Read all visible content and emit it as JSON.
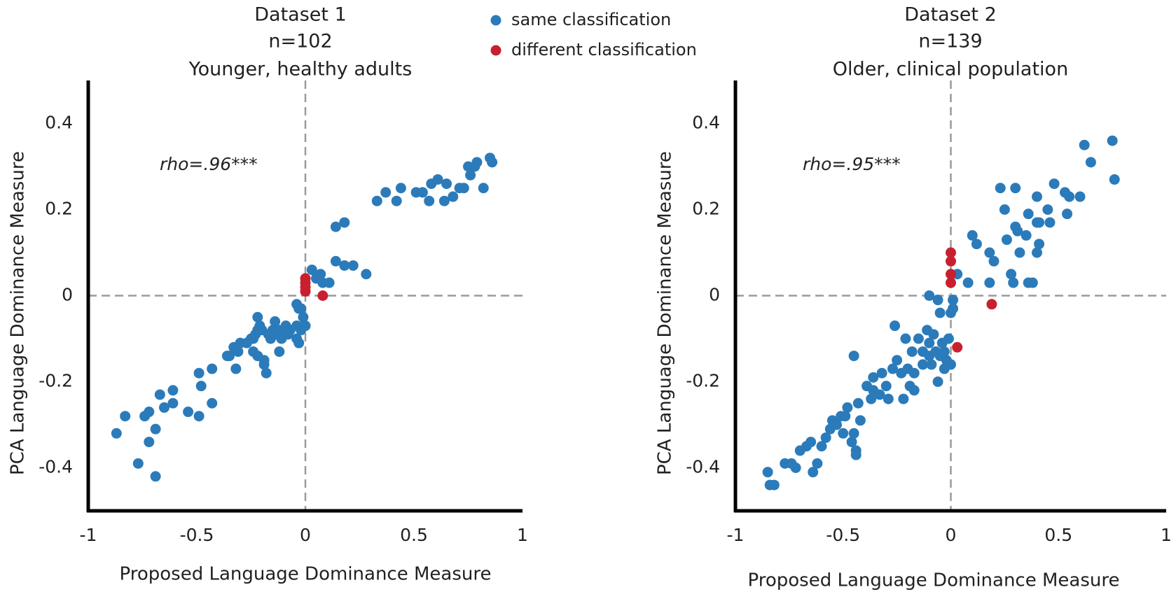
{
  "chart_data": [
    {
      "type": "scatter",
      "title": "Dataset 1",
      "subtitle": [
        "n=102",
        "Younger, healthy adults"
      ],
      "annotation": "rho=.96***",
      "xlabel": "Proposed Language Dominance Measure",
      "ylabel": "PCA Language Dominance Measure",
      "xlim": [
        -1,
        1
      ],
      "ylim": [
        -0.5,
        0.5
      ],
      "xticks": [
        -1,
        -0.5,
        0,
        0.5,
        1
      ],
      "yticks": [
        -0.4,
        -0.2,
        0,
        0.2,
        0.4
      ],
      "zero_lines": true,
      "legend": "top-center",
      "series": [
        {
          "name": "same classification",
          "color": "#2b7bba",
          "x": [
            -0.87,
            -0.83,
            -0.77,
            -0.74,
            -0.72,
            -0.72,
            -0.69,
            -0.69,
            -0.67,
            -0.65,
            -0.61,
            -0.61,
            -0.54,
            -0.49,
            -0.49,
            -0.48,
            -0.43,
            -0.43,
            -0.36,
            -0.35,
            -0.33,
            -0.32,
            -0.31,
            -0.3,
            -0.27,
            -0.25,
            -0.24,
            -0.24,
            -0.23,
            -0.22,
            -0.22,
            -0.22,
            -0.21,
            -0.2,
            -0.19,
            -0.19,
            -0.18,
            -0.17,
            -0.16,
            -0.15,
            -0.14,
            -0.14,
            -0.12,
            -0.12,
            -0.11,
            -0.09,
            -0.08,
            -0.07,
            -0.04,
            -0.04,
            -0.04,
            -0.03,
            -0.03,
            -0.02,
            -0.01,
            -0.02,
            -0.01,
            0.0,
            0.03,
            0.05,
            0.07,
            0.08,
            0.11,
            0.14,
            0.18,
            0.14,
            0.18,
            0.22,
            0.28,
            0.33,
            0.37,
            0.42,
            0.44,
            0.51,
            0.54,
            0.58,
            0.57,
            0.61,
            0.64,
            0.65,
            0.68,
            0.71,
            0.73,
            0.75,
            0.76,
            0.78,
            0.79,
            0.82,
            0.85,
            0.86
          ],
          "y": [
            -0.32,
            -0.28,
            -0.39,
            -0.28,
            -0.27,
            -0.34,
            -0.31,
            -0.42,
            -0.23,
            -0.26,
            -0.22,
            -0.25,
            -0.27,
            -0.18,
            -0.28,
            -0.21,
            -0.25,
            -0.17,
            -0.14,
            -0.14,
            -0.12,
            -0.17,
            -0.13,
            -0.11,
            -0.11,
            -0.1,
            -0.13,
            -0.1,
            -0.09,
            -0.05,
            -0.08,
            -0.14,
            -0.07,
            -0.08,
            -0.16,
            -0.15,
            -0.18,
            -0.09,
            -0.1,
            -0.08,
            -0.06,
            -0.09,
            -0.08,
            -0.13,
            -0.1,
            -0.07,
            -0.09,
            -0.08,
            -0.1,
            -0.02,
            -0.07,
            -0.03,
            -0.11,
            -0.08,
            -0.07,
            -0.03,
            -0.05,
            -0.07,
            0.06,
            0.04,
            0.05,
            0.03,
            0.03,
            0.16,
            0.17,
            0.08,
            0.07,
            0.07,
            0.05,
            0.22,
            0.24,
            0.22,
            0.25,
            0.24,
            0.24,
            0.26,
            0.22,
            0.27,
            0.22,
            0.26,
            0.23,
            0.25,
            0.25,
            0.3,
            0.28,
            0.3,
            0.31,
            0.25,
            0.32,
            0.31
          ]
        },
        {
          "name": "different classification",
          "color": "#c8202f",
          "x": [
            0.0,
            0.0,
            0.0,
            0.0,
            0.08
          ],
          "y": [
            0.04,
            0.03,
            0.02,
            0.01,
            0.0
          ]
        }
      ]
    },
    {
      "type": "scatter",
      "title": "Dataset 2",
      "subtitle": [
        "n=139",
        "Older, clinical population"
      ],
      "annotation": "rho=.95***",
      "xlabel": "Proposed Language Dominance Measure",
      "ylabel": "PCA Language Dominance Measure",
      "xlim": [
        -1,
        1
      ],
      "ylim": [
        -0.5,
        0.5
      ],
      "xticks": [
        -1,
        -0.5,
        0,
        0.5,
        1
      ],
      "yticks": [
        -0.4,
        -0.2,
        0,
        0.2,
        0.4
      ],
      "zero_lines": true,
      "series": [
        {
          "color": "#2b7bba",
          "x": [
            -0.85,
            -0.84,
            -0.82,
            -0.77,
            -0.74,
            -0.72,
            -0.7,
            -0.67,
            -0.65,
            -0.64,
            -0.62,
            -0.6,
            -0.58,
            -0.56,
            -0.55,
            -0.53,
            -0.51,
            -0.5,
            -0.49,
            -0.46,
            -0.45,
            -0.44,
            -0.44,
            -0.48,
            -0.45,
            -0.43,
            -0.42,
            -0.39,
            -0.37,
            -0.36,
            -0.36,
            -0.33,
            -0.32,
            -0.3,
            -0.29,
            -0.27,
            -0.26,
            -0.25,
            -0.23,
            -0.22,
            -0.21,
            -0.2,
            -0.19,
            -0.18,
            -0.17,
            -0.17,
            -0.15,
            -0.13,
            -0.13,
            -0.11,
            -0.1,
            -0.1,
            -0.09,
            -0.08,
            -0.07,
            -0.06,
            -0.05,
            -0.04,
            -0.03,
            -0.03,
            -0.02,
            -0.01,
            0.0,
            0.01,
            0.01,
            0.0,
            -0.1,
            -0.06,
            -0.05,
            0.03,
            0.1,
            0.12,
            0.18,
            0.18,
            0.2,
            0.23,
            0.25,
            0.26,
            0.28,
            0.29,
            0.3,
            0.3,
            0.31,
            0.32,
            0.35,
            0.36,
            0.36,
            0.38,
            0.4,
            0.41,
            0.4,
            0.4,
            0.41,
            0.46,
            0.48,
            0.53,
            0.54,
            0.55,
            0.6,
            0.62,
            0.65,
            0.75,
            0.76,
            0.45,
            0.08
          ],
          "y": [
            -0.41,
            -0.44,
            -0.44,
            -0.39,
            -0.39,
            -0.4,
            -0.36,
            -0.35,
            -0.34,
            -0.41,
            -0.39,
            -0.35,
            -0.33,
            -0.31,
            -0.29,
            -0.3,
            -0.28,
            -0.32,
            -0.28,
            -0.34,
            -0.32,
            -0.36,
            -0.37,
            -0.26,
            -0.14,
            -0.25,
            -0.29,
            -0.21,
            -0.24,
            -0.22,
            -0.19,
            -0.23,
            -0.18,
            -0.21,
            -0.24,
            -0.17,
            -0.07,
            -0.15,
            -0.18,
            -0.24,
            -0.1,
            -0.17,
            -0.21,
            -0.13,
            -0.18,
            -0.22,
            -0.1,
            -0.13,
            -0.16,
            -0.08,
            -0.11,
            -0.14,
            -0.16,
            -0.09,
            -0.13,
            -0.2,
            -0.14,
            -0.11,
            -0.17,
            -0.13,
            -0.15,
            -0.1,
            -0.16,
            -0.01,
            -0.03,
            -0.04,
            0.0,
            -0.01,
            -0.04,
            0.05,
            0.14,
            0.12,
            0.1,
            0.03,
            0.08,
            0.25,
            0.2,
            0.13,
            0.05,
            0.03,
            0.25,
            0.16,
            0.15,
            0.1,
            0.14,
            0.19,
            0.03,
            0.03,
            0.1,
            0.12,
            0.23,
            0.17,
            0.17,
            0.17,
            0.26,
            0.24,
            0.19,
            0.23,
            0.23,
            0.35,
            0.31,
            0.36,
            0.27,
            0.2,
            0.03
          ]
        },
        {
          "color": "#c8202f",
          "x": [
            0.0,
            0.0,
            0.0,
            0.0,
            0.19,
            0.03
          ],
          "y": [
            0.1,
            0.08,
            0.05,
            0.03,
            -0.02,
            -0.12
          ]
        }
      ]
    }
  ]
}
